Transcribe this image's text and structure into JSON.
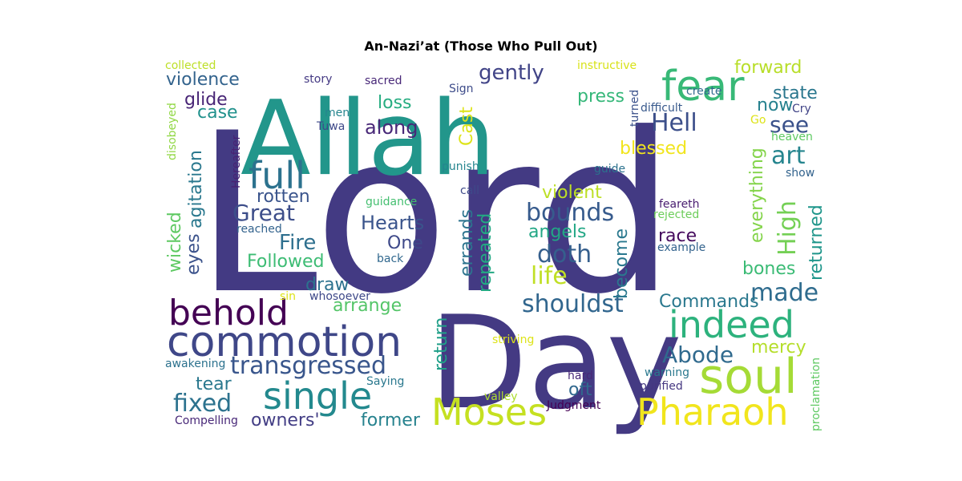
{
  "title": "An-Nazi’at (Those Who Pull Out)",
  "words": [
    {
      "text": "Lord",
      "color": "#433a83"
    },
    {
      "text": "Allah",
      "color": "#22968b"
    },
    {
      "text": "Day",
      "color": "#443a83"
    },
    {
      "text": "fear",
      "color": "#38b977"
    },
    {
      "text": "commotion",
      "color": "#3f4788"
    },
    {
      "text": "behold",
      "color": "#440154"
    },
    {
      "text": "soul",
      "color": "#a5db36"
    },
    {
      "text": "indeed",
      "color": "#2db27d"
    },
    {
      "text": "Pharaoh",
      "color": "#f1e51d"
    },
    {
      "text": "Moses",
      "color": "#c5e021"
    },
    {
      "text": "single",
      "color": "#23898e"
    },
    {
      "text": "full",
      "color": "#2c728e"
    },
    {
      "text": "transgressed",
      "color": "#39568c"
    },
    {
      "text": "Hell",
      "color": "#3c4f8a"
    },
    {
      "text": "bounds",
      "color": "#375b8d"
    },
    {
      "text": "doth",
      "color": "#355f8d"
    },
    {
      "text": "shouldst",
      "color": "#31668e"
    },
    {
      "text": "Great",
      "color": "#3d4e8a"
    },
    {
      "text": "fixed",
      "color": "#2c728e"
    },
    {
      "text": "Abode",
      "color": "#306a8e"
    },
    {
      "text": "made",
      "color": "#2f6c8e"
    },
    {
      "text": "art",
      "color": "#25858e"
    },
    {
      "text": "see",
      "color": "#3b528b"
    },
    {
      "text": "High",
      "color": "#74d055"
    },
    {
      "text": "gently",
      "color": "#414487"
    },
    {
      "text": "along",
      "color": "#482878"
    },
    {
      "text": "violence",
      "color": "#33638d"
    },
    {
      "text": "Fire",
      "color": "#2e6f8e"
    },
    {
      "text": "Hearts",
      "color": "#3a548c"
    },
    {
      "text": "One",
      "color": "#3e4989"
    },
    {
      "text": "Followed",
      "color": "#3dbc74"
    },
    {
      "text": "Commands",
      "color": "#2a788e"
    },
    {
      "text": "life",
      "color": "#c0df25"
    },
    {
      "text": "angels",
      "color": "#22a785"
    },
    {
      "text": "race",
      "color": "#460b5e"
    },
    {
      "text": "forward",
      "color": "#b8de29"
    },
    {
      "text": "loss",
      "color": "#27ad81"
    },
    {
      "text": "press",
      "color": "#35b779"
    },
    {
      "text": "blessed",
      "color": "#f1e51d"
    },
    {
      "text": "Cast",
      "color": "#dde318"
    },
    {
      "text": "glide",
      "color": "#482576"
    },
    {
      "text": "case",
      "color": "#21918c"
    },
    {
      "text": "agitation",
      "color": "#2a788e"
    },
    {
      "text": "wicked",
      "color": "#5ec962"
    },
    {
      "text": "eyes",
      "color": "#3b528b"
    },
    {
      "text": "rotten",
      "color": "#3a548c"
    },
    {
      "text": "violent",
      "color": "#bddf26"
    },
    {
      "text": "errands",
      "color": "#2c738e"
    },
    {
      "text": "repeated",
      "color": "#23a983"
    },
    {
      "text": "become",
      "color": "#2a788e"
    },
    {
      "text": "everything",
      "color": "#84d44b"
    },
    {
      "text": "returned",
      "color": "#1f968b"
    },
    {
      "text": "bones",
      "color": "#3bbb75"
    },
    {
      "text": "state",
      "color": "#2a778e"
    },
    {
      "text": "now",
      "color": "#26818e"
    },
    {
      "text": "mercy",
      "color": "#b5de2b"
    },
    {
      "text": "draw",
      "color": "#2c728e"
    },
    {
      "text": "arrange",
      "color": "#54c568"
    },
    {
      "text": "return",
      "color": "#1f9f88"
    },
    {
      "text": "tear",
      "color": "#2a788e"
    },
    {
      "text": "owners'",
      "color": "#433e85"
    },
    {
      "text": "former",
      "color": "#26828e"
    },
    {
      "text": "oft",
      "color": "#31688e"
    },
    {
      "text": "collected",
      "color": "#bddf26"
    },
    {
      "text": "story",
      "color": "#443983"
    },
    {
      "text": "sacred",
      "color": "#482878"
    },
    {
      "text": "instructive",
      "color": "#d8e219"
    },
    {
      "text": "create",
      "color": "#31688e"
    },
    {
      "text": "Sign",
      "color": "#3e4c8a"
    },
    {
      "text": "turned",
      "color": "#3b518b"
    },
    {
      "text": "difficult",
      "color": "#38598c"
    },
    {
      "text": "Cry",
      "color": "#414487"
    },
    {
      "text": "men",
      "color": "#25858e"
    },
    {
      "text": "Tuwa",
      "color": "#3e4989"
    },
    {
      "text": "disobeyed",
      "color": "#90d743"
    },
    {
      "text": "Hereafter",
      "color": "#482173"
    },
    {
      "text": "Go",
      "color": "#dde318"
    },
    {
      "text": "heaven",
      "color": "#5ec962"
    },
    {
      "text": "punish",
      "color": "#25858e"
    },
    {
      "text": "guide",
      "color": "#2c728e"
    },
    {
      "text": "show",
      "color": "#33638d"
    },
    {
      "text": "guidance",
      "color": "#44bf70"
    },
    {
      "text": "call",
      "color": "#3e4989"
    },
    {
      "text": "feareth",
      "color": "#481d6f"
    },
    {
      "text": "rejected",
      "color": "#6ccd5a"
    },
    {
      "text": "reached",
      "color": "#33638d"
    },
    {
      "text": "back",
      "color": "#31688e"
    },
    {
      "text": "example",
      "color": "#33638d"
    },
    {
      "text": "sin",
      "color": "#dde318"
    },
    {
      "text": "whosoever",
      "color": "#3e4989"
    },
    {
      "text": "striving",
      "color": "#dde318"
    },
    {
      "text": "awakening",
      "color": "#2c728e"
    },
    {
      "text": "Saying",
      "color": "#2a788e"
    },
    {
      "text": "hard",
      "color": "#482878"
    },
    {
      "text": "warning",
      "color": "#2a788e"
    },
    {
      "text": "purified",
      "color": "#453781"
    },
    {
      "text": "valley",
      "color": "#addc30"
    },
    {
      "text": "Judgment",
      "color": "#440154"
    },
    {
      "text": "Compelling",
      "color": "#482878"
    },
    {
      "text": "proclamation",
      "color": "#5ec962"
    }
  ]
}
